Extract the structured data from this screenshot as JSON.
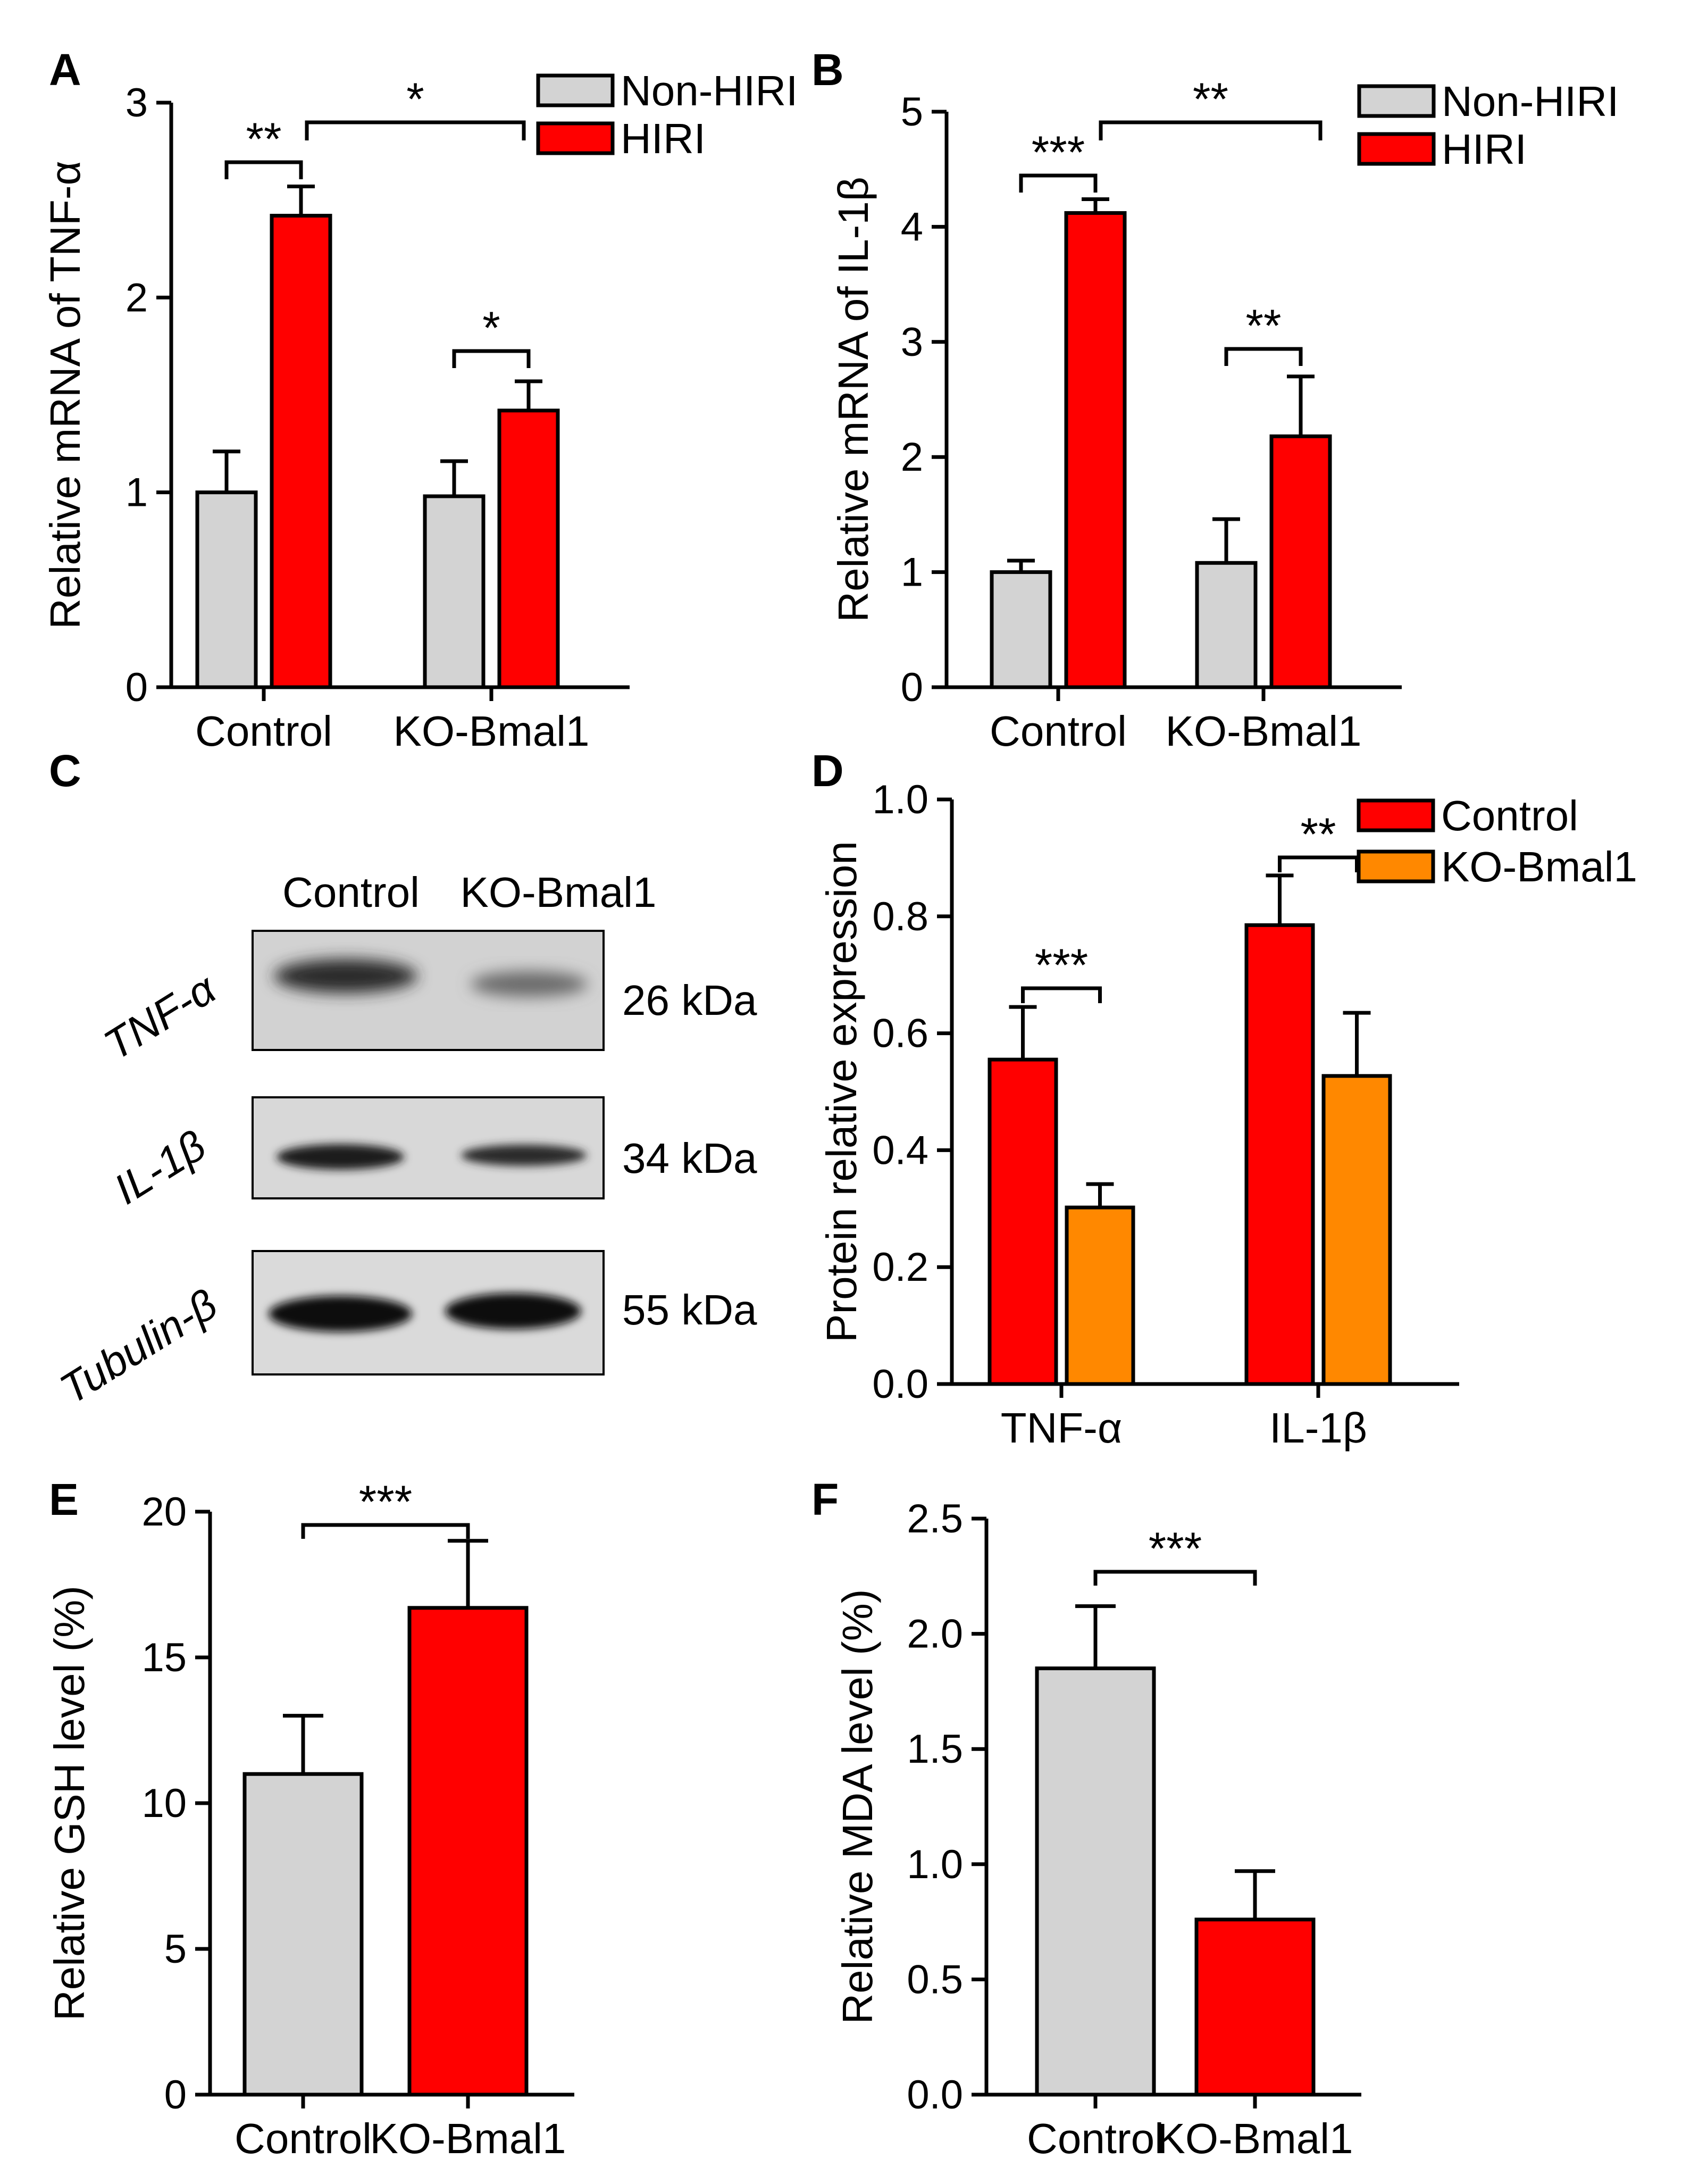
{
  "colors": {
    "non_hiri": "#d3d3d3",
    "hiri": "#ff0000",
    "control": "#ff0000",
    "ko_bmal1": "#ff8800",
    "axis": "#000000"
  },
  "panels": [
    "A",
    "B",
    "C",
    "D",
    "E",
    "F"
  ],
  "chart_data": [
    {
      "id": "A",
      "type": "bar",
      "categories": [
        "Control",
        "KO-Bmal1"
      ],
      "series": [
        {
          "name": "Non-HIRI",
          "values": [
            1.0,
            0.98
          ],
          "errors": [
            0.21,
            0.18
          ],
          "color": "#d3d3d3"
        },
        {
          "name": "HIRI",
          "values": [
            2.42,
            1.42
          ],
          "errors": [
            0.15,
            0.15
          ],
          "color": "#ff0000"
        }
      ],
      "ylabel": "Relative mRNA of TNF-α",
      "ylim": [
        0,
        3
      ],
      "yticks": [
        0,
        1,
        2,
        3
      ],
      "ytick_labels": [
        "0",
        "1",
        "2",
        "3"
      ],
      "significance": [
        {
          "label": "**",
          "group": 0
        },
        {
          "label": "*",
          "group": 1
        },
        {
          "label": "*",
          "between": "HIRI"
        }
      ]
    },
    {
      "id": "B",
      "type": "bar",
      "categories": [
        "Control",
        "KO-Bmal1"
      ],
      "series": [
        {
          "name": "Non-HIRI",
          "values": [
            1.0,
            1.08
          ],
          "errors": [
            0.1,
            0.38
          ],
          "color": "#d3d3d3"
        },
        {
          "name": "HIRI",
          "values": [
            4.12,
            2.18
          ],
          "errors": [
            0.12,
            0.52
          ],
          "color": "#ff0000"
        }
      ],
      "ylabel": "Relative mRNA of IL-1β",
      "ylim": [
        0,
        5
      ],
      "yticks": [
        0,
        1,
        2,
        3,
        4,
        5
      ],
      "ytick_labels": [
        "0",
        "1",
        "2",
        "3",
        "4",
        "5"
      ],
      "significance": [
        {
          "label": "***",
          "group": 0
        },
        {
          "label": "**",
          "group": 1
        },
        {
          "label": "**",
          "between": "HIRI"
        }
      ]
    },
    {
      "id": "D",
      "type": "bar",
      "categories": [
        "TNF-α",
        "IL-1β"
      ],
      "series": [
        {
          "name": "Control",
          "values": [
            0.555,
            0.785
          ],
          "errors": [
            0.09,
            0.085
          ],
          "color": "#ff0000"
        },
        {
          "name": "KO-Bmal1",
          "values": [
            0.302,
            0.527
          ],
          "errors": [
            0.04,
            0.108
          ],
          "color": "#ff8800"
        }
      ],
      "ylabel": "Protein relative expression",
      "ylim": [
        0,
        1.0
      ],
      "yticks": [
        0,
        0.2,
        0.4,
        0.6,
        0.8,
        1.0
      ],
      "ytick_labels": [
        "0.0",
        "0.2",
        "0.4",
        "0.6",
        "0.8",
        "1.0"
      ],
      "significance": [
        {
          "label": "***",
          "group": 0
        },
        {
          "label": "**",
          "group": 1
        }
      ]
    },
    {
      "id": "E",
      "type": "bar",
      "categories": [
        "Control",
        "KO-Bmal1"
      ],
      "values": [
        11.0,
        16.7
      ],
      "errors": [
        2.0,
        2.3
      ],
      "colors": [
        "#d3d3d3",
        "#ff0000"
      ],
      "ylabel": "Relative GSH level (%)",
      "ylim": [
        0,
        20
      ],
      "yticks": [
        0,
        5,
        10,
        15,
        20
      ],
      "ytick_labels": [
        "0",
        "5",
        "10",
        "15",
        "20"
      ],
      "significance": [
        {
          "label": "***"
        }
      ]
    },
    {
      "id": "F",
      "type": "bar",
      "categories": [
        "Control",
        "KO-Bmal1"
      ],
      "values": [
        1.85,
        0.76
      ],
      "errors": [
        0.27,
        0.21
      ],
      "colors": [
        "#d3d3d3",
        "#ff0000"
      ],
      "ylabel": "Relative MDA level (%)",
      "ylim": [
        0,
        2.5
      ],
      "yticks": [
        0,
        0.5,
        1.0,
        1.5,
        2.0,
        2.5
      ],
      "ytick_labels": [
        "0.0",
        "0.5",
        "1.0",
        "1.5",
        "2.0",
        "2.5"
      ],
      "significance": [
        {
          "label": "***"
        }
      ]
    }
  ],
  "blot": {
    "columns": [
      "Control",
      "KO-Bmal1"
    ],
    "rows": [
      {
        "protein": "TNF-α",
        "size": "26 kDa"
      },
      {
        "protein": "IL-1β",
        "size": "34 kDa"
      },
      {
        "protein": "Tubulin-β",
        "size": "55 kDa"
      }
    ]
  }
}
